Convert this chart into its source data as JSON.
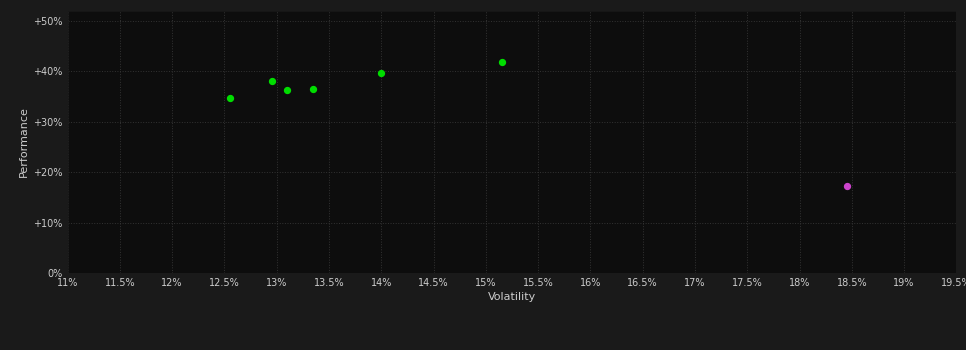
{
  "background_color": "#1a1a1a",
  "plot_bg_color": "#0d0d0d",
  "grid_color": "#333333",
  "axis_label_color": "#cccccc",
  "tick_label_color": "#cccccc",
  "xlabel": "Volatility",
  "ylabel": "Performance",
  "xlim": [
    0.11,
    0.195
  ],
  "ylim": [
    0.0,
    0.52
  ],
  "xticks": [
    0.11,
    0.115,
    0.12,
    0.125,
    0.13,
    0.135,
    0.14,
    0.145,
    0.15,
    0.155,
    0.16,
    0.165,
    0.17,
    0.175,
    0.18,
    0.185,
    0.19,
    0.195
  ],
  "yticks": [
    0.0,
    0.1,
    0.2,
    0.3,
    0.4,
    0.5
  ],
  "ytick_labels": [
    "0%",
    "+10%",
    "+20%",
    "+30%",
    "+40%",
    "+50%"
  ],
  "green_points": [
    [
      0.1255,
      0.346
    ],
    [
      0.1295,
      0.38
    ],
    [
      0.131,
      0.362
    ],
    [
      0.1335,
      0.365
    ],
    [
      0.14,
      0.397
    ],
    [
      0.1515,
      0.418
    ]
  ],
  "magenta_points": [
    [
      0.1845,
      0.173
    ]
  ],
  "green_color": "#00dd00",
  "magenta_color": "#cc44cc",
  "marker_size": 18
}
